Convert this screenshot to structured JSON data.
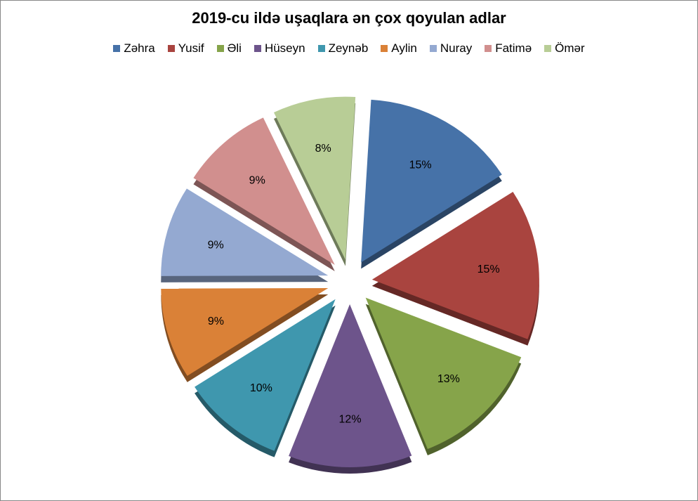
{
  "chart_data": {
    "type": "pie",
    "title": "2019-cu ildə uşaqlara ən çox qoyulan adlar",
    "legend_position": "top",
    "categories": [
      "Zəhra",
      "Yusif",
      "Əli",
      "Hüseyn",
      "Zeynəb",
      "Aylin",
      "Nuray",
      "Fatimə",
      "Ömər"
    ],
    "values": [
      15,
      15,
      13,
      12,
      10,
      9,
      9,
      9,
      8
    ],
    "labels": [
      "15%",
      "15%",
      "13%",
      "12%",
      "10%",
      "9%",
      "9%",
      "9%",
      "8%"
    ],
    "colors": [
      "#4672A8",
      "#A9443F",
      "#86A44A",
      "#6D548B",
      "#3F97AE",
      "#DA8137",
      "#94A9D1",
      "#D18F8E",
      "#B8CD96"
    ],
    "exploded": true
  }
}
